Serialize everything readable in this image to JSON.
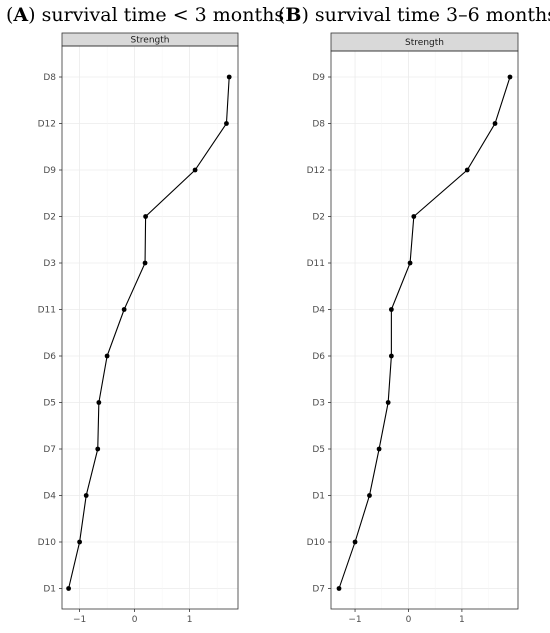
{
  "panels": [
    {
      "letter": "A",
      "title_rest": ") survival time < 3 months"
    },
    {
      "letter": "B",
      "title_rest": ") survival time 3–6 months"
    }
  ],
  "chart_data": [
    {
      "type": "line",
      "facet_label": "Strength",
      "categories": [
        "D8",
        "D12",
        "D9",
        "D2",
        "D3",
        "D11",
        "D6",
        "D5",
        "D7",
        "D4",
        "D10",
        "D1"
      ],
      "values": [
        1.72,
        1.67,
        1.1,
        0.2,
        0.19,
        -0.19,
        -0.5,
        -0.65,
        -0.67,
        -0.88,
        -1.0,
        -1.2
      ],
      "xlim": [
        -1.32,
        1.88
      ],
      "xticks": [
        -1,
        0,
        1
      ],
      "xtick_labels": [
        "−1",
        "0",
        "1"
      ],
      "grid": true
    },
    {
      "type": "line",
      "facet_label": "Strength",
      "categories": [
        "D9",
        "D8",
        "D12",
        "D2",
        "D11",
        "D4",
        "D6",
        "D3",
        "D5",
        "D1",
        "D10",
        "D7"
      ],
      "values": [
        1.9,
        1.62,
        1.1,
        0.1,
        0.03,
        -0.32,
        -0.32,
        -0.38,
        -0.55,
        -0.73,
        -1.0,
        -1.3
      ],
      "xlim": [
        -1.45,
        2.05
      ],
      "xticks": [
        -1,
        0,
        1
      ],
      "xtick_labels": [
        "−1",
        "0",
        "1"
      ],
      "grid": true
    }
  ]
}
